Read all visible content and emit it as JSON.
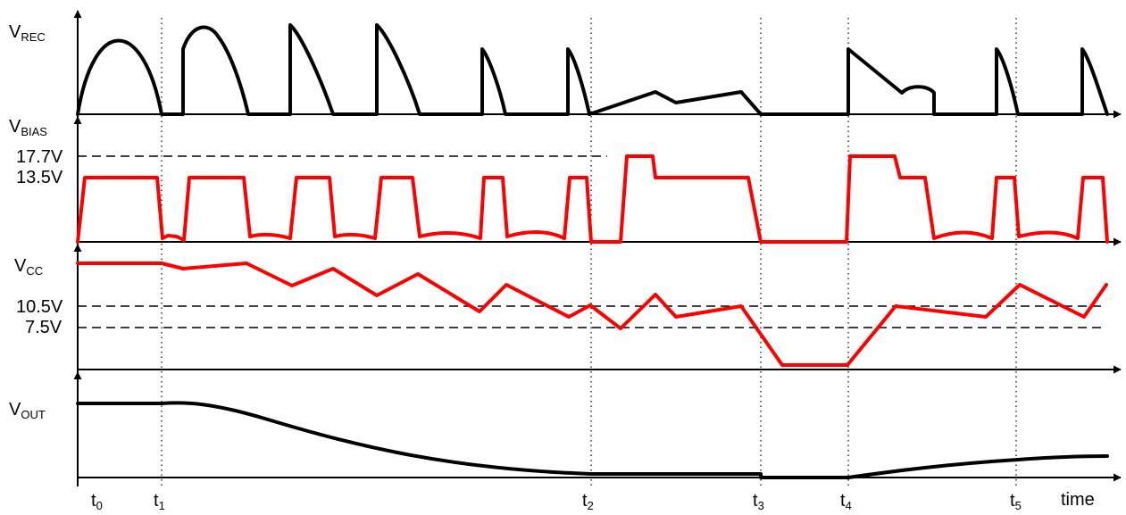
{
  "signals": {
    "vrec": {
      "main": "V",
      "sub": "REC"
    },
    "vbias": {
      "main": "V",
      "sub": "BIAS"
    },
    "vcc": {
      "main": "V",
      "sub": "CC"
    },
    "vout": {
      "main": "V",
      "sub": "OUT"
    }
  },
  "levels": {
    "v17_7": "17.7V",
    "v13_5": "13.5V",
    "v10_5": "10.5V",
    "v7_5": "7.5V"
  },
  "time_axis": {
    "label": "time",
    "markers": [
      {
        "main": "t",
        "sub": "0"
      },
      {
        "main": "t",
        "sub": "1"
      },
      {
        "main": "t",
        "sub": "2"
      },
      {
        "main": "t",
        "sub": "3"
      },
      {
        "main": "t",
        "sub": "4"
      },
      {
        "main": "t",
        "sub": "5"
      }
    ]
  },
  "colors": {
    "rec": "#000000",
    "bias": "#ff0000",
    "cc": "#ff0000",
    "out": "#000000"
  }
}
